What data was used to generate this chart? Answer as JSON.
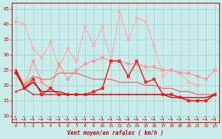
{
  "xlabel": "Vent moyen/en rafales ( km/h )",
  "xlim": [
    -0.5,
    23.5
  ],
  "ylim": [
    8,
    47
  ],
  "yticks": [
    10,
    15,
    20,
    25,
    30,
    35,
    40,
    45
  ],
  "xticks": [
    0,
    1,
    2,
    3,
    4,
    5,
    6,
    7,
    8,
    9,
    10,
    11,
    12,
    13,
    14,
    15,
    16,
    17,
    18,
    19,
    20,
    21,
    22,
    23
  ],
  "bg_color": "#c8ecea",
  "grid_color": "#a8d8d4",
  "lines": [
    {
      "y": [
        41,
        40,
        32,
        29,
        34,
        26,
        32,
        28,
        39,
        33,
        39,
        28,
        44,
        35,
        42,
        41,
        33,
        23,
        25,
        24,
        21,
        20,
        null,
        null
      ],
      "color": "#ffb0b0",
      "lw": 1.0,
      "marker": "s",
      "ms": 2.5
    },
    {
      "y": [
        25,
        20,
        28,
        21,
        19,
        27,
        22,
        25,
        27,
        28,
        29,
        28,
        28,
        27,
        27,
        26,
        26,
        25,
        25,
        24,
        24,
        23,
        22,
        25
      ],
      "color": "#ff9999",
      "lw": 1.0,
      "marker": "s",
      "ms": 2.5
    },
    {
      "y": [
        25,
        20,
        23,
        22,
        22,
        24,
        24,
        24,
        23,
        22,
        22,
        22,
        21,
        21,
        21,
        20,
        20,
        19,
        19,
        18,
        18,
        17,
        17,
        17
      ],
      "color": "#ff6666",
      "lw": 1.0,
      "marker": null,
      "ms": 0
    },
    {
      "y": [
        24,
        19,
        22,
        17,
        19,
        17,
        17,
        17,
        17,
        18,
        19,
        28,
        28,
        23,
        28,
        21,
        22,
        17,
        17,
        16,
        15,
        15,
        15,
        17
      ],
      "color": "#ff2222",
      "lw": 1.2,
      "marker": "s",
      "ms": 2.5
    },
    {
      "y": [
        25,
        19,
        21,
        18,
        18,
        18,
        17,
        17,
        17,
        17,
        17,
        17,
        17,
        17,
        17,
        17,
        17,
        17,
        16,
        16,
        16,
        16,
        16,
        17
      ],
      "color": "#cc0000",
      "lw": 1.0,
      "marker": null,
      "ms": 0
    },
    {
      "y": [
        18,
        19,
        17,
        17,
        17,
        17,
        17,
        17,
        17,
        17,
        17,
        17,
        17,
        17,
        17,
        17,
        17,
        17,
        17,
        16,
        15,
        15,
        15,
        17
      ],
      "color": "#dd2222",
      "lw": 1.0,
      "marker": "s",
      "ms": 2.0
    }
  ]
}
